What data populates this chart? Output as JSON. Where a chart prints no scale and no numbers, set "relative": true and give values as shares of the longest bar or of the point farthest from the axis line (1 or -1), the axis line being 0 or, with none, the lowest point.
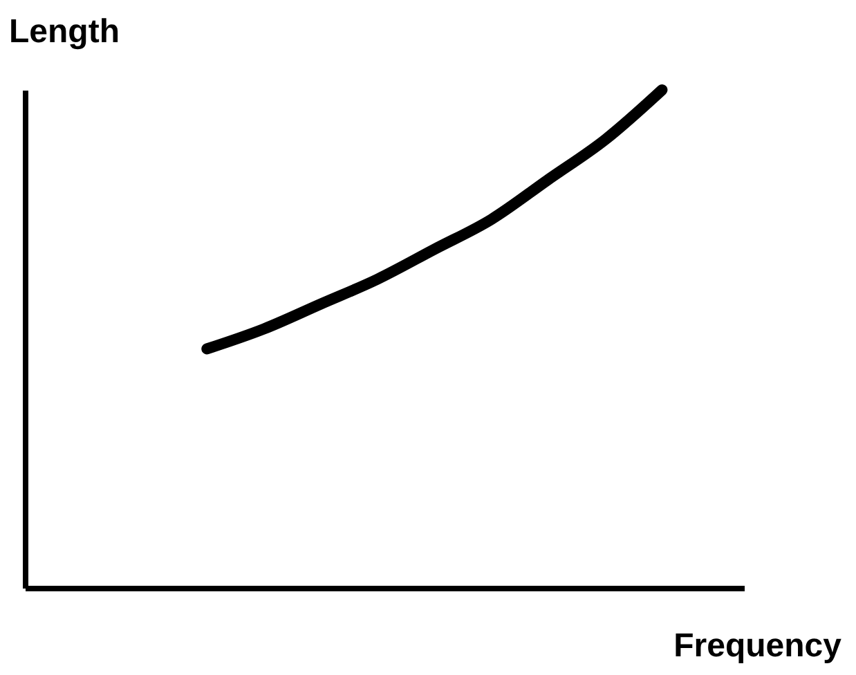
{
  "chart_data": {
    "type": "line",
    "relative": true,
    "xlabel": "Frequency",
    "ylabel": "Length",
    "categories": [
      null,
      null,
      null,
      null,
      null,
      null,
      null,
      null,
      null
    ],
    "series": [
      {
        "color": "#000000",
        "values": [
          0.48,
          0.52,
          0.57,
          0.62,
          0.68,
          0.74,
          0.82,
          0.9,
          1.0
        ]
      }
    ],
    "grid": false,
    "legend": false,
    "marker": "none",
    "line_style": "solid",
    "tick_labels": false
  }
}
